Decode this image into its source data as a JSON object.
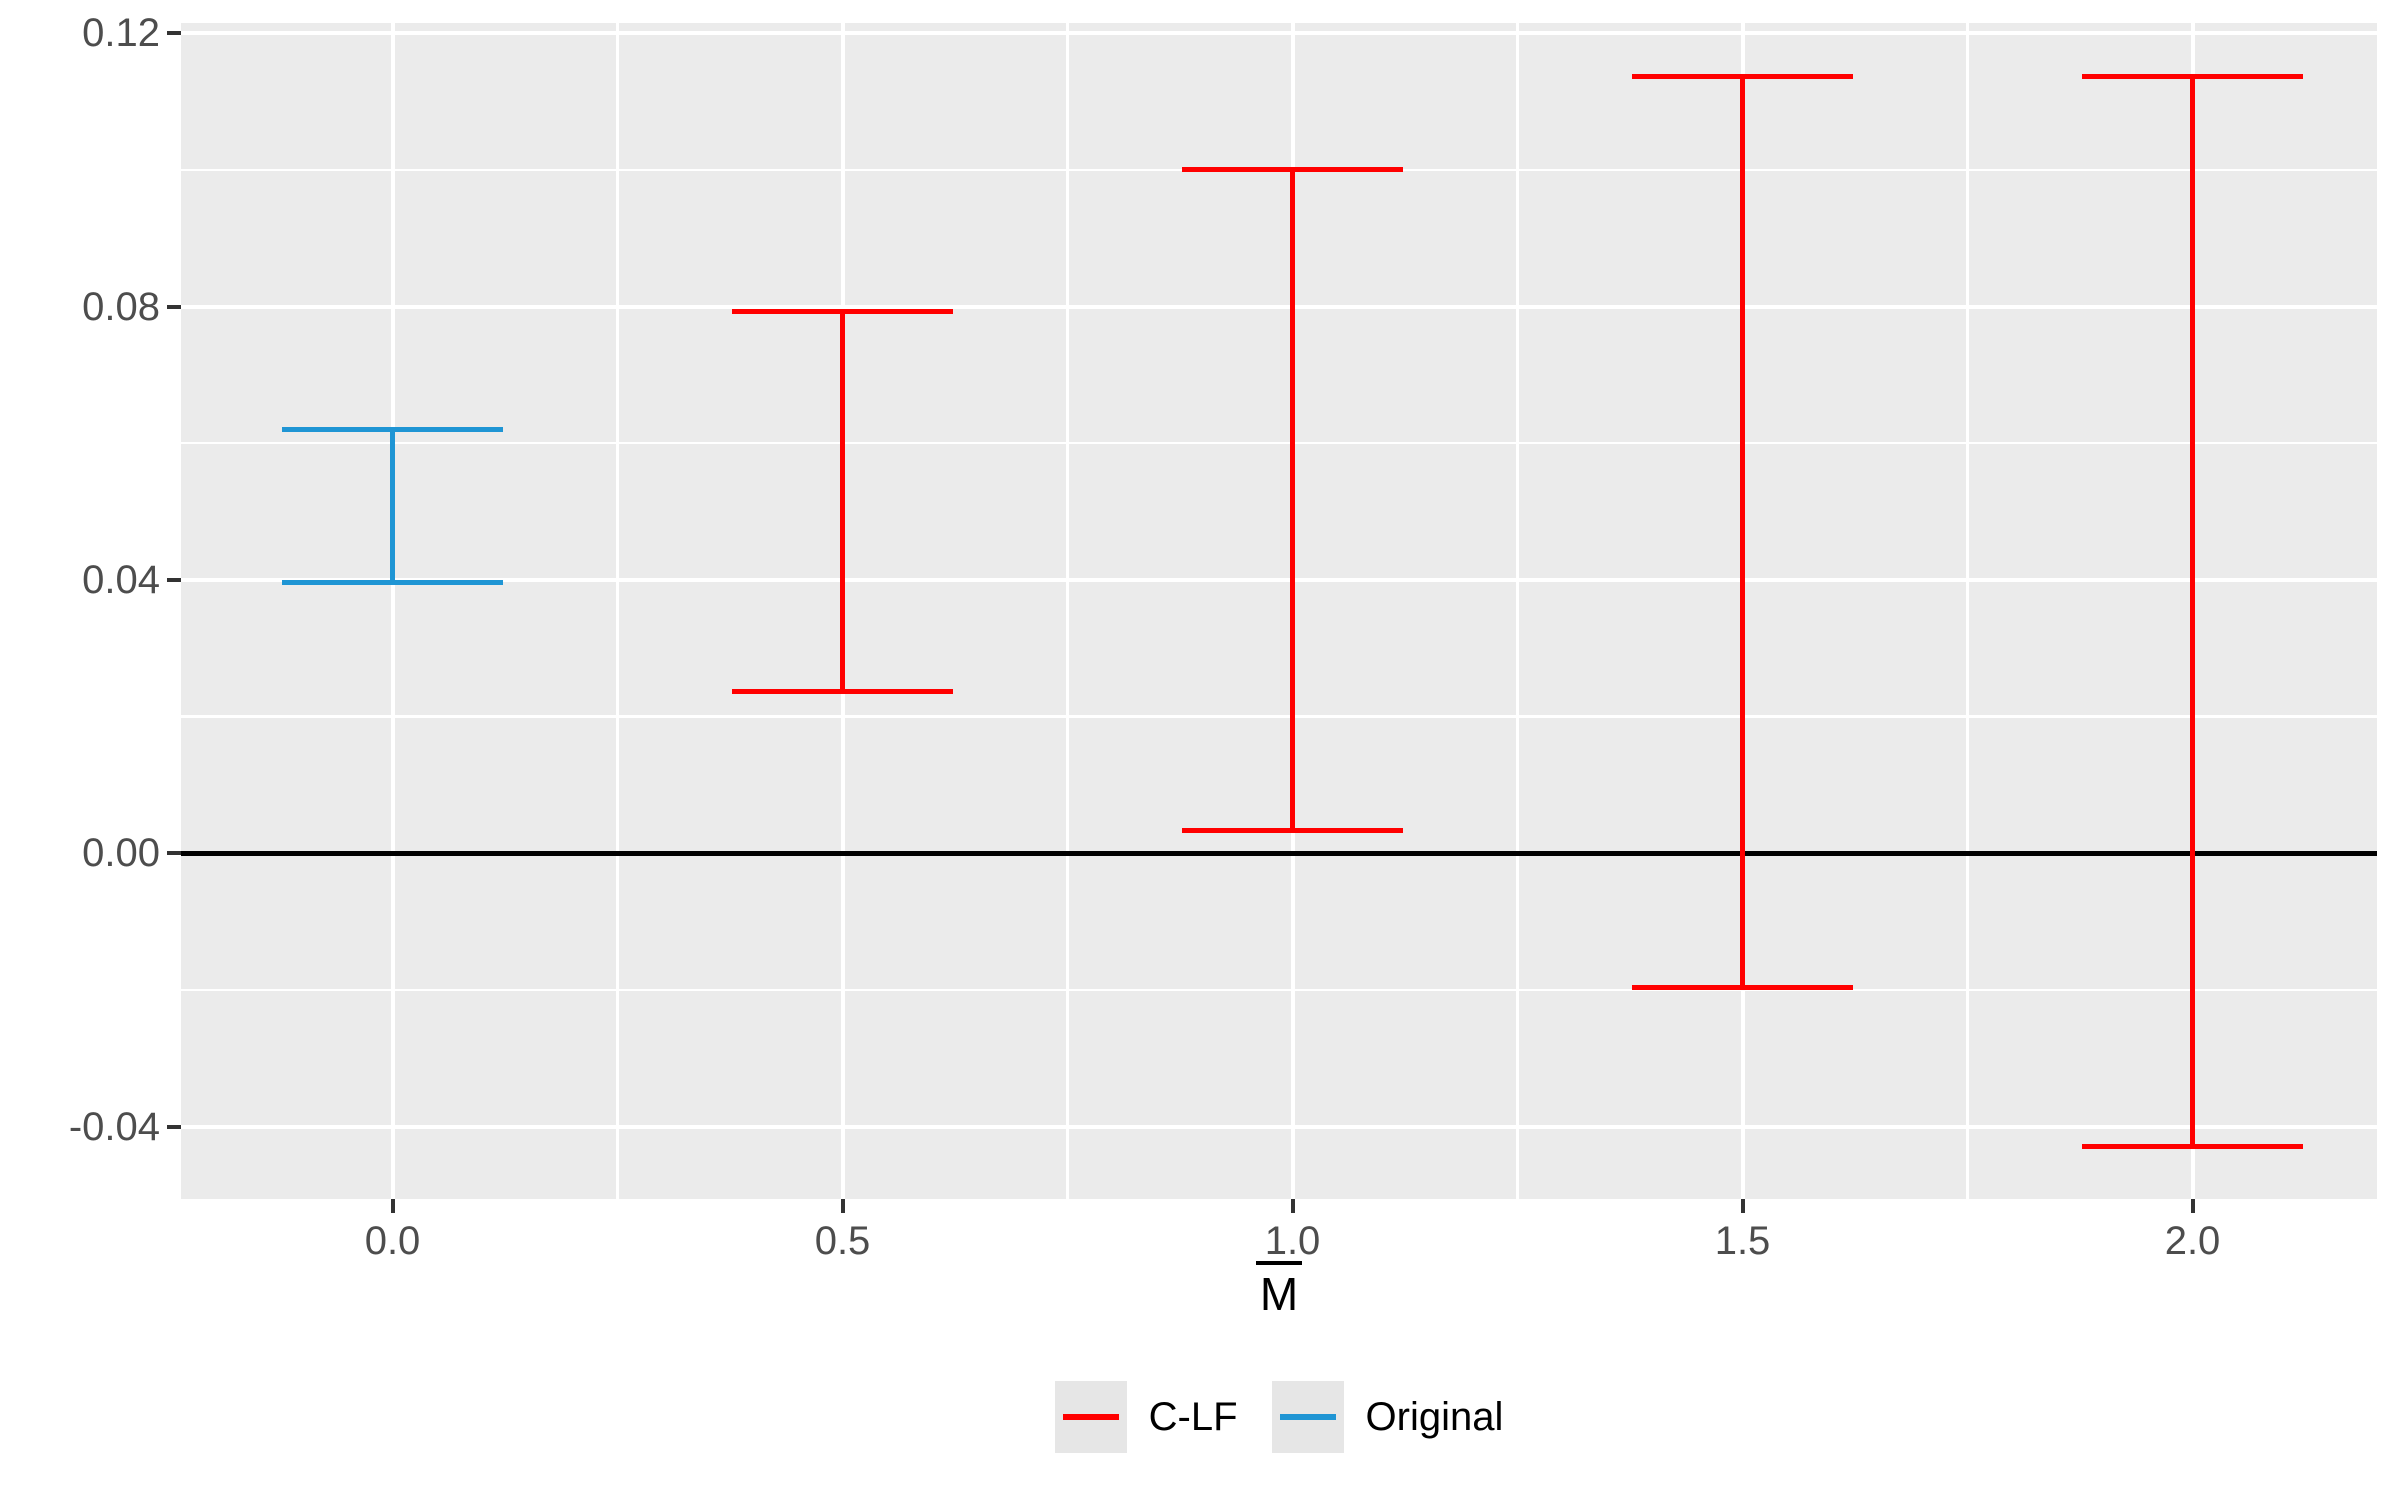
{
  "figure": {
    "background": "#FFFFFF",
    "panel_background": "#EBEBEB",
    "grid_color": "#FFFFFF",
    "axis_text_color": "#4D4D4D",
    "tick_mark_color": "#333333",
    "zero_line_color": "#000000"
  },
  "axis_x": {
    "title_display": "M",
    "title_has_overbar": true
  },
  "chart_data": {
    "type": "errorbar",
    "title": "",
    "xlabel": "M̄",
    "ylabel": "",
    "xlim": [
      -0.235,
      2.205
    ],
    "ylim": [
      -0.0506,
      0.1215
    ],
    "grid": true,
    "x_major_ticks": [
      0.0,
      0.5,
      1.0,
      1.5,
      2.0
    ],
    "x_tick_labels": [
      "0.0",
      "0.5",
      "1.0",
      "1.5",
      "2.0"
    ],
    "x_minor_ticks": [
      0.25,
      0.75,
      1.25,
      1.75
    ],
    "y_major_ticks": [
      0.12,
      0.08,
      0.04,
      0.0,
      -0.04
    ],
    "y_tick_labels": [
      "0.12",
      "0.08",
      "0.04",
      "0.00",
      "-0.04"
    ],
    "y_minor_ticks": [
      0.1,
      0.06,
      0.02,
      -0.02
    ],
    "reference_line_y": 0.0,
    "errorbar_cap_halfwidth": 0.1233,
    "series": [
      {
        "name": "C-LF",
        "color": "#FF0000",
        "points": [
          {
            "x": 0.5,
            "ymin": 0.0236,
            "ymax": 0.0793
          },
          {
            "x": 1.0,
            "ymin": 0.0034,
            "ymax": 0.1
          },
          {
            "x": 1.5,
            "ymin": -0.0196,
            "ymax": 0.1137
          },
          {
            "x": 2.0,
            "ymin": -0.0429,
            "ymax": 0.1137
          }
        ]
      },
      {
        "name": "Original",
        "color": "#1F95D4",
        "points": [
          {
            "x": 0.0,
            "ymin": 0.0396,
            "ymax": 0.062
          }
        ]
      }
    ],
    "legend": {
      "position": "bottom",
      "entries": [
        {
          "label": "C-LF",
          "color": "#FF0000"
        },
        {
          "label": "Original",
          "color": "#1F95D4"
        }
      ]
    }
  }
}
